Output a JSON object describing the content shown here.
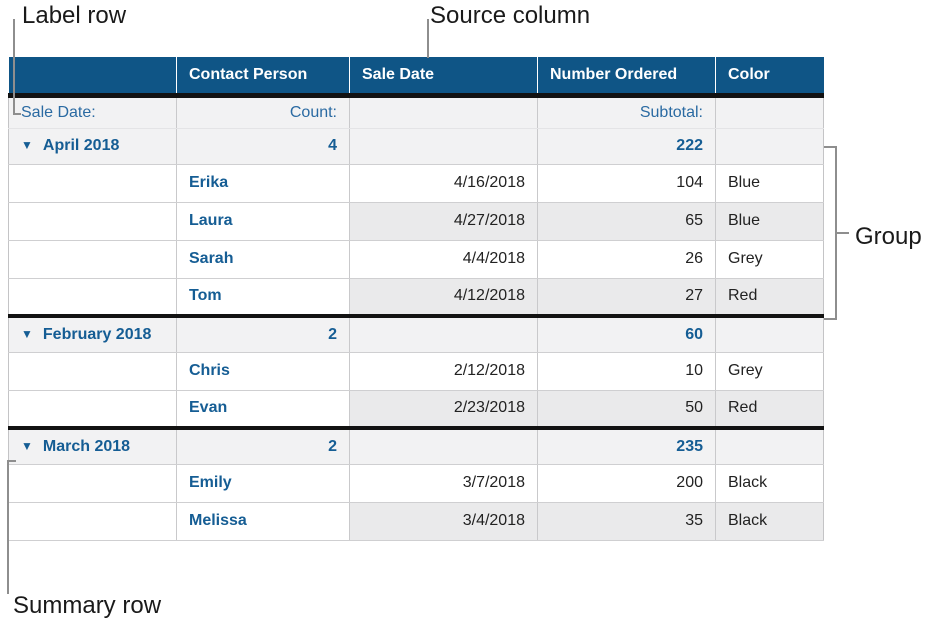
{
  "annotations": {
    "label_row": "Label row",
    "source_column": "Source column",
    "group": "Group",
    "summary_row": "Summary row"
  },
  "table": {
    "columns": [
      "",
      "Contact Person",
      "Sale Date",
      "Number Ordered",
      "Color"
    ],
    "label_row": {
      "source_label": "Sale Date:",
      "count_label": "Count:",
      "subtotal_label": "Subtotal:"
    },
    "disclosure_icon": "▼",
    "groups": [
      {
        "name": "April 2018",
        "count": "4",
        "subtotal": "222",
        "rows": [
          {
            "contact": "Erika",
            "date": "4/16/2018",
            "number": "104",
            "color": "Blue"
          },
          {
            "contact": "Laura",
            "date": "4/27/2018",
            "number": "65",
            "color": "Blue"
          },
          {
            "contact": "Sarah",
            "date": "4/4/2018",
            "number": "26",
            "color": "Grey"
          },
          {
            "contact": "Tom",
            "date": "4/12/2018",
            "number": "27",
            "color": "Red"
          }
        ]
      },
      {
        "name": "February 2018",
        "count": "2",
        "subtotal": "60",
        "rows": [
          {
            "contact": "Chris",
            "date": "2/12/2018",
            "number": "10",
            "color": "Grey"
          },
          {
            "contact": "Evan",
            "date": "2/23/2018",
            "number": "50",
            "color": "Red"
          }
        ]
      },
      {
        "name": "March 2018",
        "count": "2",
        "subtotal": "235",
        "rows": [
          {
            "contact": "Emily",
            "date": "3/7/2018",
            "number": "200",
            "color": "Black"
          },
          {
            "contact": "Melissa",
            "date": "3/4/2018",
            "number": "35",
            "color": "Black"
          }
        ]
      }
    ]
  },
  "colors": {
    "header_bg": "#0f5586",
    "bold_blue_text": "#155d94",
    "label_blue_text": "#2a6aa2",
    "band_grey": "#eaeaeb",
    "summary_bg": "#f2f2f3",
    "thick_border": "#121212",
    "thin_border": "#c9c9cb",
    "annotation_line": "#8e8e8e"
  }
}
